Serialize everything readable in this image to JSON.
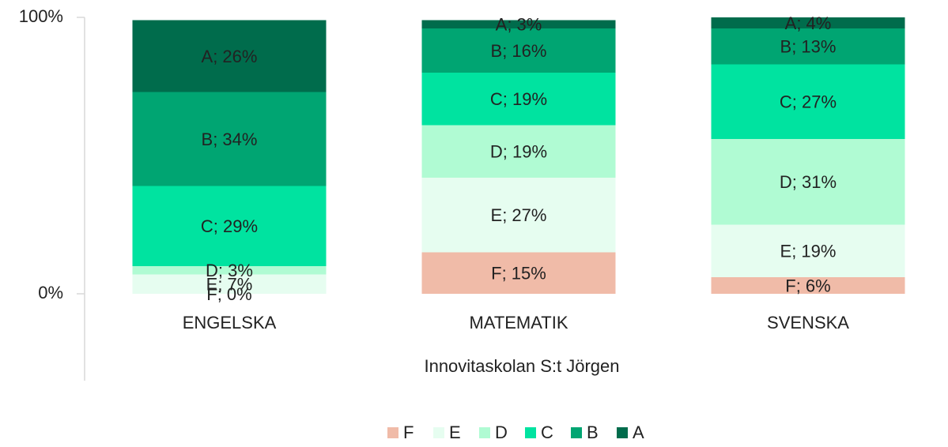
{
  "chart_data": {
    "type": "stacked_bar",
    "categories": [
      "ENGELSKA",
      "MATEMATIK",
      "SVENSKA"
    ],
    "x_label": "Innovitaskolan S:t Jörgen",
    "ylim": [
      0,
      100
    ],
    "yticks": [
      {
        "value": 0,
        "label": "0%"
      },
      {
        "value": 100,
        "label": "100%"
      }
    ],
    "legend": "bottom",
    "series": [
      {
        "name": "F",
        "color": "#f0bba8",
        "values": [
          0,
          15,
          6
        ],
        "value_labels": [
          "F; 0%",
          "F; 15%",
          "F; 6%"
        ]
      },
      {
        "name": "E",
        "color": "#e6fdf0",
        "values": [
          7,
          27,
          19
        ],
        "value_labels": [
          "E; 7%",
          "E; 27%",
          "E; 19%"
        ]
      },
      {
        "name": "D",
        "color": "#b0fbd3",
        "values": [
          3,
          19,
          31
        ],
        "value_labels": [
          "D; 3%",
          "D; 19%",
          "D; 31%"
        ]
      },
      {
        "name": "C",
        "color": "#00e3a0",
        "values": [
          29,
          19,
          27
        ],
        "value_labels": [
          "C; 29%",
          "C; 19%",
          "C; 27%"
        ]
      },
      {
        "name": "B",
        "color": "#00a572",
        "values": [
          34,
          16,
          13
        ],
        "value_labels": [
          "B; 34%",
          "B; 16%",
          "B; 13%"
        ]
      },
      {
        "name": "A",
        "color": "#006c4c",
        "values": [
          26,
          3,
          4
        ],
        "value_labels": [
          "A; 26%",
          "A; 3%",
          "A; 4%"
        ]
      }
    ]
  }
}
